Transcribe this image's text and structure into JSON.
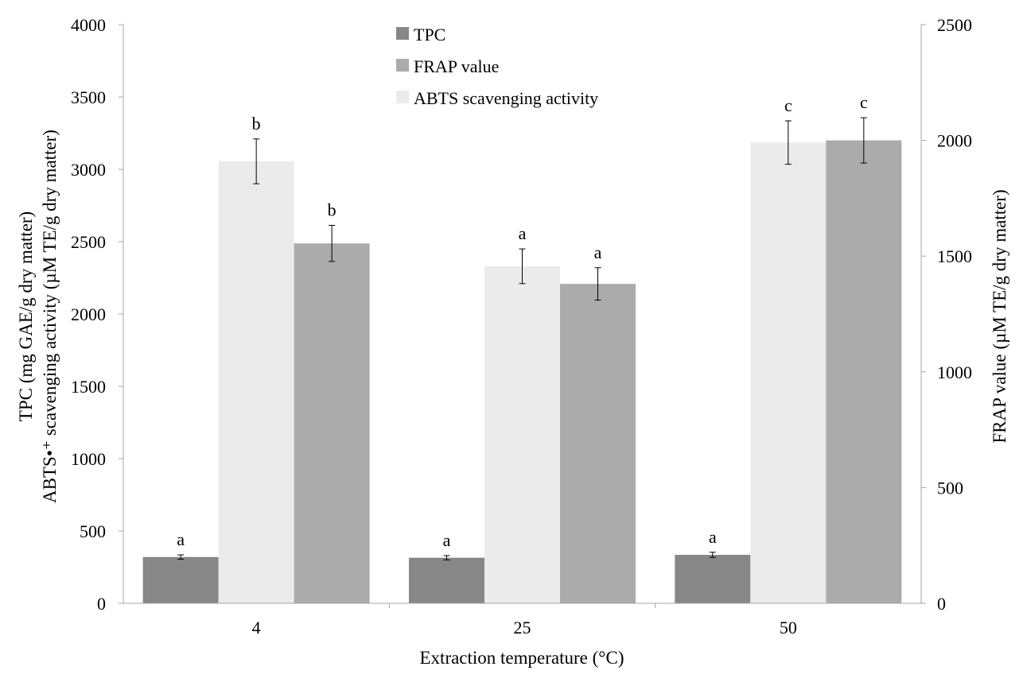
{
  "chart_data": {
    "type": "bar",
    "title": "",
    "categories": [
      "4",
      "25",
      "50"
    ],
    "xlabel": "Extraction temperature (°C)",
    "ylabel_left_line1": "TPC (mg GAE/g dry matter)",
    "ylabel_left_line2": "ABTS•⁺ scavenging activity (µM TE/g dry matter)",
    "ylabel_right": "FRAP value (µM TE/g dry matter)",
    "ylim_left": [
      0,
      4000
    ],
    "ylim_right": [
      0,
      2500
    ],
    "yticks_left": [
      0,
      500,
      1000,
      1500,
      2000,
      2500,
      3000,
      3500,
      4000
    ],
    "yticks_right": [
      0,
      500,
      1000,
      1500,
      2000,
      2500
    ],
    "grid": false,
    "legend_position": "top-center",
    "series": [
      {
        "name": "TPC",
        "axis": "left",
        "color": "#878787",
        "values": [
          320,
          315,
          335
        ],
        "errors": [
          15,
          15,
          18
        ],
        "labels": [
          "a",
          "a",
          "a"
        ]
      },
      {
        "name": "ABTS scavenging activity",
        "axis": "left",
        "color": "#ebebeb",
        "values": [
          3055,
          2330,
          3185
        ],
        "errors": [
          155,
          120,
          150
        ],
        "labels": [
          "b",
          "a",
          "c"
        ]
      },
      {
        "name": "FRAP value",
        "axis": "right",
        "color": "#ababab",
        "values": [
          1555,
          1380,
          2000
        ],
        "errors": [
          78,
          70,
          98
        ],
        "labels": [
          "b",
          "a",
          "c"
        ]
      }
    ],
    "legend": [
      {
        "label": "TPC",
        "color": "#878787"
      },
      {
        "label": "FRAP value",
        "color": "#ababab"
      },
      {
        "label": "ABTS scavenging activity",
        "color": "#ebebeb"
      }
    ]
  }
}
